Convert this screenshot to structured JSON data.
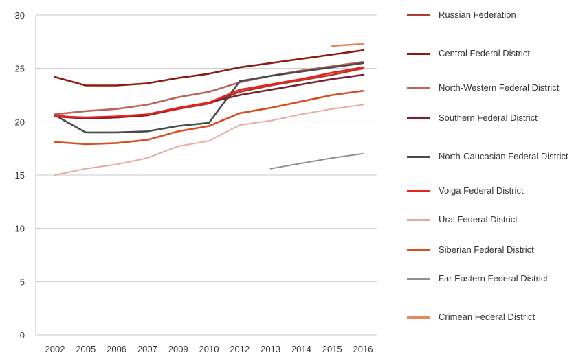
{
  "chart_data": {
    "type": "line",
    "title": "",
    "xlabel": "",
    "ylabel": "",
    "categories": [
      "2002",
      "2005",
      "2006",
      "2007",
      "2009",
      "2010",
      "2012",
      "2013",
      "2014",
      "2015",
      "2016"
    ],
    "ylim": [
      0,
      30
    ],
    "yticks": [
      "0",
      "5",
      "10",
      "15",
      "20",
      "25",
      "30"
    ],
    "grid": true,
    "legend_position": "right",
    "series": [
      {
        "name": "Russian Federation",
        "color": "#b03a2e",
        "values": [
          20.6,
          20.3,
          20.4,
          20.6,
          21.2,
          21.7,
          22.8,
          23.4,
          23.9,
          24.4,
          25.0
        ]
      },
      {
        "name": "Central Federal District",
        "color": "#8b1a10",
        "values": [
          24.2,
          23.4,
          23.4,
          23.6,
          24.1,
          24.5,
          25.1,
          25.5,
          25.9,
          26.3,
          26.7
        ]
      },
      {
        "name": "North-Western Federal District",
        "color": "#c0605a",
        "values": [
          20.7,
          21.0,
          21.2,
          21.6,
          22.3,
          22.8,
          23.7,
          24.3,
          24.8,
          25.2,
          25.6
        ]
      },
      {
        "name": "Southern Federal District",
        "color": "#7a1f2b",
        "values": [
          20.5,
          20.3,
          20.4,
          20.6,
          21.3,
          21.8,
          22.5,
          23.0,
          23.5,
          24.0,
          24.4
        ]
      },
      {
        "name": "North-Caucasian Federal District",
        "color": "#4a4a4a",
        "values": [
          20.6,
          19.0,
          19.0,
          19.1,
          19.6,
          19.9,
          23.8,
          24.3,
          24.7,
          25.1,
          25.5
        ]
      },
      {
        "name": "Volga Federal District",
        "color": "#e8231c",
        "values": [
          20.5,
          20.4,
          20.5,
          20.7,
          21.3,
          21.8,
          23.0,
          23.5,
          24.0,
          24.6,
          25.1
        ]
      },
      {
        "name": "Ural Federal District",
        "color": "#e8aaa0",
        "values": [
          15.0,
          15.6,
          16.0,
          16.6,
          17.7,
          18.2,
          19.7,
          20.1,
          20.7,
          21.2,
          21.6
        ]
      },
      {
        "name": "Siberian Federal District",
        "color": "#d94e1f",
        "values": [
          18.1,
          17.9,
          18.0,
          18.3,
          19.1,
          19.6,
          20.8,
          21.3,
          21.9,
          22.5,
          22.9
        ]
      },
      {
        "name": "Far Eastern Federal District",
        "color": "#8f8f8f",
        "values": [
          null,
          null,
          null,
          null,
          null,
          null,
          null,
          15.6,
          16.1,
          16.6,
          17.0
        ]
      },
      {
        "name": "Crimean Federal District",
        "color": "#e8875a",
        "values": [
          null,
          null,
          null,
          null,
          null,
          null,
          null,
          null,
          null,
          27.1,
          27.3
        ]
      }
    ]
  }
}
